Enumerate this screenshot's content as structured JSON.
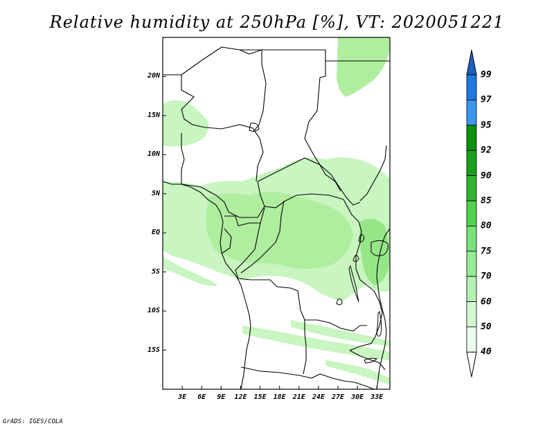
{
  "title": "Relative humidity at 250hPa [%], VT: 2020051221",
  "credit": "GrADS: IGES/COLA",
  "map": {
    "lat_range": [
      -20,
      25
    ],
    "lon_range": [
      0,
      35
    ],
    "lat_labels": [
      {
        "text": "20N",
        "lat": 20
      },
      {
        "text": "15N",
        "lat": 15
      },
      {
        "text": "10N",
        "lat": 10
      },
      {
        "text": "5N",
        "lat": 5
      },
      {
        "text": "EQ",
        "lat": 0
      },
      {
        "text": "5S",
        "lat": -5
      },
      {
        "text": "10S",
        "lat": -10
      },
      {
        "text": "15S",
        "lat": -15
      }
    ],
    "lon_labels": [
      {
        "text": "3E",
        "lon": 3
      },
      {
        "text": "6E",
        "lon": 6
      },
      {
        "text": "9E",
        "lon": 9
      },
      {
        "text": "12E",
        "lon": 12
      },
      {
        "text": "15E",
        "lon": 15
      },
      {
        "text": "18E",
        "lon": 18
      },
      {
        "text": "21E",
        "lon": 21
      },
      {
        "text": "24E",
        "lon": 24
      },
      {
        "text": "27E",
        "lon": 27
      },
      {
        "text": "30E",
        "lon": 30
      },
      {
        "text": "33E",
        "lon": 33
      }
    ]
  },
  "colorbar": {
    "levels": [
      "99",
      "97",
      "95",
      "92",
      "90",
      "85",
      "80",
      "75",
      "70",
      "60",
      "50",
      "40"
    ],
    "colors": [
      "#1e6ed8",
      "#1e78e0",
      "#3c96ec",
      "#0e900e",
      "#1aa01a",
      "#32b432",
      "#50d250",
      "#78e278",
      "#96eb96",
      "#b4f2b4",
      "#d2f8d2",
      "#ebfdeb",
      "#ffffff"
    ],
    "top_color": "#1c5fbf"
  },
  "fields": {
    "light": "#c8f5c0",
    "mid": "#b0ee9f",
    "strong": "#96e688"
  },
  "boundary_color": "#000000"
}
